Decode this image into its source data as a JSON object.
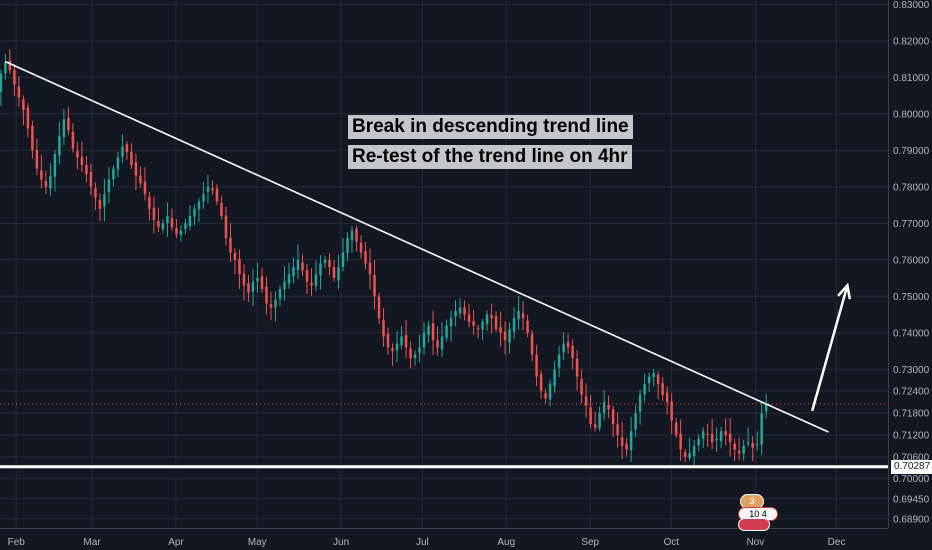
{
  "chart_data": {
    "type": "candlestick",
    "symbol_color_up": "#26a69a",
    "symbol_color_down": "#ef5350",
    "background": "#131722",
    "grid": true,
    "y_axis": {
      "ticks": [
        "0.83000",
        "0.82000",
        "0.81000",
        "0.80000",
        "0.79000",
        "0.78000",
        "0.77000",
        "0.76000",
        "0.75000",
        "0.74000",
        "0.73000",
        "0.72400",
        "0.71800",
        "0.71200",
        "0.70600",
        "0.70000",
        "0.69450",
        "0.68900"
      ],
      "tick_values": [
        0.83,
        0.82,
        0.81,
        0.8,
        0.79,
        0.78,
        0.77,
        0.76,
        0.75,
        0.74,
        0.73,
        0.724,
        0.718,
        0.712,
        0.706,
        0.7,
        0.6945,
        0.689
      ],
      "position": "right"
    },
    "x_axis": {
      "ticks": [
        "Feb",
        "Mar",
        "Apr",
        "May",
        "Jun",
        "Jul",
        "Aug",
        "Sep",
        "Oct",
        "Nov",
        "Dec"
      ],
      "range": [
        "2018-01-26",
        "2018-12-20"
      ]
    },
    "ylim": [
      0.6865,
      0.8312
    ],
    "last_price": "0.70287",
    "last_price_value": 0.70287,
    "current_price_value": 0.7205,
    "support_level": 0.7033,
    "trend_line": {
      "start": {
        "date": "2018-01-28",
        "value": 0.8143
      },
      "end": {
        "date": "2018-11-28",
        "value": 0.7128
      }
    },
    "projection_arrow": {
      "start": {
        "date": "2018-11-22",
        "value": 0.7186
      },
      "end": {
        "date": "2018-12-05",
        "value": 0.753
      }
    },
    "annotations": [
      "Break in descending trend line",
      "Re-test of the trend line on 4hr"
    ],
    "events": [
      "3",
      "10 4",
      ""
    ],
    "closes": [
      0.7985,
      0.806,
      0.811,
      0.8142,
      0.812,
      0.808,
      0.8045,
      0.801,
      0.796,
      0.79,
      0.785,
      0.782,
      0.78,
      0.783,
      0.789,
      0.794,
      0.7985,
      0.7955,
      0.7905,
      0.788,
      0.786,
      0.7835,
      0.78,
      0.777,
      0.774,
      0.778,
      0.782,
      0.785,
      0.788,
      0.791,
      0.7895,
      0.786,
      0.783,
      0.781,
      0.778,
      0.774,
      0.771,
      0.769,
      0.77,
      0.772,
      0.769,
      0.767,
      0.768,
      0.77,
      0.772,
      0.774,
      0.776,
      0.778,
      0.78,
      0.779,
      0.776,
      0.772,
      0.766,
      0.762,
      0.76,
      0.756,
      0.753,
      0.751,
      0.754,
      0.755,
      0.752,
      0.748,
      0.747,
      0.749,
      0.752,
      0.754,
      0.756,
      0.758,
      0.76,
      0.757,
      0.754,
      0.753,
      0.756,
      0.759,
      0.76,
      0.758,
      0.755,
      0.758,
      0.762,
      0.766,
      0.768,
      0.765,
      0.762,
      0.759,
      0.756,
      0.75,
      0.744,
      0.739,
      0.736,
      0.735,
      0.737,
      0.739,
      0.736,
      0.733,
      0.734,
      0.736,
      0.74,
      0.742,
      0.738,
      0.736,
      0.739,
      0.742,
      0.744,
      0.746,
      0.747,
      0.745,
      0.743,
      0.742,
      0.741,
      0.743,
      0.745,
      0.744,
      0.741,
      0.74,
      0.738,
      0.741,
      0.744,
      0.746,
      0.744,
      0.74,
      0.734,
      0.728,
      0.724,
      0.722,
      0.726,
      0.73,
      0.734,
      0.737,
      0.736,
      0.733,
      0.728,
      0.723,
      0.72,
      0.715,
      0.714,
      0.718,
      0.721,
      0.719,
      0.715,
      0.712,
      0.709,
      0.708,
      0.713,
      0.718,
      0.723,
      0.726,
      0.728,
      0.729,
      0.726,
      0.723,
      0.721,
      0.716,
      0.712,
      0.708,
      0.706,
      0.707,
      0.709,
      0.711,
      0.713,
      0.712,
      0.71,
      0.711,
      0.713,
      0.712,
      0.71,
      0.708,
      0.707,
      0.709,
      0.71,
      0.7085,
      0.7095,
      0.718,
      0.7205
    ]
  }
}
